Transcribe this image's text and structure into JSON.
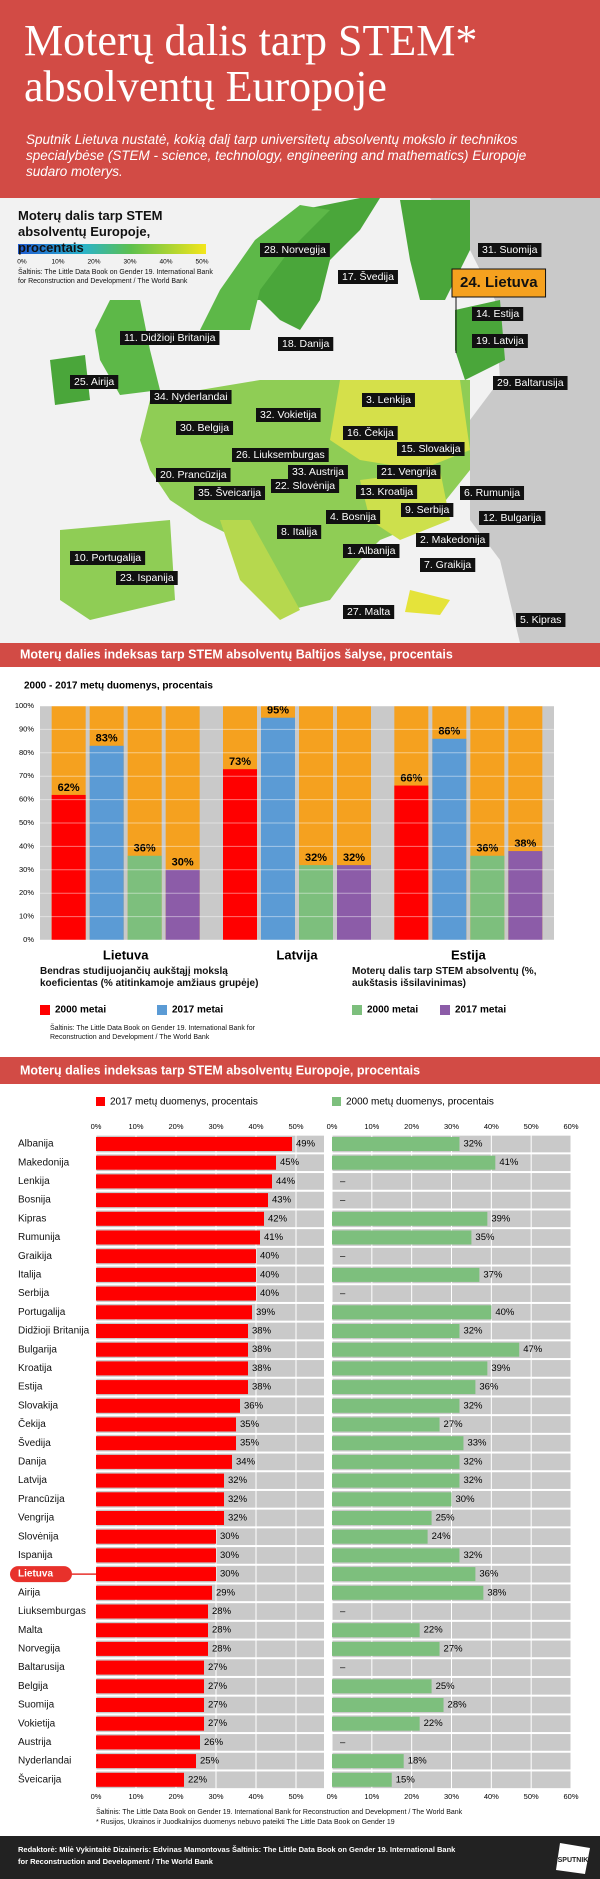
{
  "header": {
    "title": "Moterų dalis tarp STEM* absolventų Europoje",
    "subtitle": "Sputnik Lietuva nustatė, kokią dalį tarp universitetų absolventų mokslo ir technikos specialybėse (STEM - science, technology, engineering and mathematics) Europoje sudaro moterys."
  },
  "map": {
    "title": "Moterų dalis tarp STEM absolventų Europoje, procentais",
    "legend_ticks": [
      "0%",
      "10%",
      "20%",
      "30%",
      "40%",
      "50%"
    ],
    "source": "Šaltinis: The Little Data Book on Gender 19. International Bank for Reconstruction and Development / The World Bank",
    "highlight": "24. Lietuva",
    "labels": [
      "28. Norvegija",
      "17. Švedija",
      "31. Suomija",
      "24. Lietuva",
      "14. Estija",
      "19. Latvija",
      "11. Didžioji Britanija",
      "18. Danija",
      "25. Airija",
      "29. Baltarusija",
      "34. Nyderlandai",
      "3. Lenkija",
      "32. Vokietija",
      "30. Belgija",
      "16. Čekija",
      "15. Slovakija",
      "26. Liuksemburgas",
      "20. Prancūzija",
      "33. Austrija",
      "21. Vengrija",
      "22. Slovėnija",
      "35. Šveicarija",
      "13. Kroatija",
      "6. Rumunija",
      "9. Serbija",
      "4. Bosnija",
      "12. Bulgarija",
      "8. Italija",
      "2. Makedonija",
      "1. Albanija",
      "10. Portugalija",
      "7. Graikija",
      "23. Ispanija",
      "27. Malta",
      "5. Kipras"
    ]
  },
  "chart_data": [
    {
      "type": "grouped-bar",
      "title": "Moterų dalies indeksas tarp STEM absolventų Baltijos šalyse, procentais",
      "subtitle": "2000 - 2017 metų duomenys, procentais",
      "categories": [
        "Lietuva",
        "Latvija",
        "Estija"
      ],
      "legend_titles": [
        "Bendras studijuojančių aukštąjį mokslą koeficientas (% atitinkamoje amžiaus grupėje)",
        "Moterų dalis tarp STEM absolventų (%, aukštasis išsilavinimas)"
      ],
      "series": [
        {
          "name": "2000 metai",
          "color": "#ff0000",
          "values": [
            62,
            73,
            66
          ],
          "value_labels": [
            "62%",
            "73%",
            "66%"
          ]
        },
        {
          "name": "2017 metai",
          "color": "#5b9bd5",
          "values": [
            83,
            95,
            86
          ],
          "value_labels": [
            "83%",
            "95%",
            "86%"
          ]
        },
        {
          "name": "2000 metai",
          "color": "#7dbf7d",
          "values": [
            36,
            32,
            36
          ],
          "value_labels": [
            "36%",
            "32%",
            "36%"
          ]
        },
        {
          "name": "2017 metai",
          "color": "#8c5ca8",
          "values": [
            30,
            32,
            38
          ],
          "value_labels": [
            "30%",
            "32%",
            "38%"
          ]
        }
      ],
      "background_color": "#f5a11f",
      "ylim": [
        0,
        100
      ],
      "yticks": [
        {
          "value": 0,
          "label": "0%"
        },
        {
          "value": 10,
          "label": "10%"
        },
        {
          "value": 20,
          "label": "20%"
        },
        {
          "value": 30,
          "label": "30%"
        },
        {
          "value": 40,
          "label": "40%"
        },
        {
          "value": 50,
          "label": "50%"
        },
        {
          "value": 60,
          "label": "60%"
        },
        {
          "value": 70,
          "label": "70%"
        },
        {
          "value": 80,
          "label": "80%"
        },
        {
          "value": 90,
          "label": "90%"
        },
        {
          "value": 100,
          "label": "100%"
        }
      ],
      "grid": true,
      "source": "Šaltinis: The Little Data Book on Gender 19. International Bank for Reconstruction and Development / The World Bank"
    },
    {
      "type": "hbar-panels",
      "title": "Moterų dalies indeksas tarp STEM absolventų Europoje, procentais",
      "categories": [
        "Albanija",
        "Makedonija",
        "Lenkija",
        "Bosnija",
        "Kipras",
        "Rumunija",
        "Graikija",
        "Italija",
        "Serbija",
        "Portugalija",
        "Didžioji Britanija",
        "Bulgarija",
        "Kroatija",
        "Estija",
        "Slovakija",
        "Čekija",
        "Švedija",
        "Danija",
        "Latvija",
        "Prancūzija",
        "Vengrija",
        "Slovėnija",
        "Ispanija",
        "Lietuva",
        "Airija",
        "Liuksemburgas",
        "Malta",
        "Norvegija",
        "Baltarusija",
        "Belgija",
        "Suomija",
        "Vokietija",
        "Austrija",
        "Nyderlandai",
        "Šveicarija"
      ],
      "highlight": "Lietuva",
      "series": [
        {
          "name": "2017 metų duomenys, procentais",
          "color": "#ff0000",
          "values": [
            49,
            45,
            44,
            43,
            42,
            41,
            40,
            40,
            40,
            39,
            38,
            38,
            38,
            38,
            36,
            35,
            35,
            34,
            32,
            32,
            32,
            30,
            30,
            30,
            29,
            28,
            28,
            28,
            27,
            27,
            27,
            27,
            26,
            25,
            22
          ],
          "value_labels": [
            "49%",
            "45%",
            "44%",
            "43%",
            "42%",
            "41%",
            "40%",
            "40%",
            "40%",
            "39%",
            "38%",
            "38%",
            "38%",
            "38%",
            "36%",
            "35%",
            "35%",
            "34%",
            "32%",
            "32%",
            "32%",
            "30%",
            "30%",
            "30%",
            "29%",
            "28%",
            "28%",
            "28%",
            "27%",
            "27%",
            "27%",
            "27%",
            "26%",
            "25%",
            "22%"
          ],
          "xlim": [
            0,
            57
          ],
          "xticks": [
            {
              "value": 0,
              "label": "0%"
            },
            {
              "value": 10,
              "label": "10%"
            },
            {
              "value": 20,
              "label": "20%"
            },
            {
              "value": 30,
              "label": "30%"
            },
            {
              "value": 40,
              "label": "40%"
            },
            {
              "value": 50,
              "label": "50%"
            }
          ]
        },
        {
          "name": "2000 metų duomenys, procentais",
          "color": "#7dbf7d",
          "values": [
            32,
            41,
            null,
            null,
            39,
            35,
            null,
            37,
            null,
            40,
            32,
            47,
            39,
            36,
            32,
            27,
            33,
            32,
            32,
            30,
            25,
            24,
            32,
            36,
            38,
            null,
            22,
            27,
            null,
            25,
            28,
            22,
            null,
            18,
            15
          ],
          "value_labels": [
            "32%",
            "41%",
            "–",
            "–",
            "39%",
            "35%",
            "–",
            "37%",
            "–",
            "40%",
            "32%",
            "47%",
            "39%",
            "36%",
            "32%",
            "27%",
            "33%",
            "32%",
            "32%",
            "30%",
            "25%",
            "24%",
            "32%",
            "36%",
            "38%",
            "–",
            "22%",
            "27%",
            "–",
            "25%",
            "28%",
            "22%",
            "–",
            "18%",
            "15%"
          ],
          "xlim": [
            0,
            60
          ],
          "xticks": [
            {
              "value": 0,
              "label": "0%"
            },
            {
              "value": 10,
              "label": "10%"
            },
            {
              "value": 20,
              "label": "20%"
            },
            {
              "value": 30,
              "label": "30%"
            },
            {
              "value": 40,
              "label": "40%"
            },
            {
              "value": 50,
              "label": "50%"
            },
            {
              "value": 60,
              "label": "60%"
            }
          ]
        }
      ],
      "panel_color": "#c9c9c9",
      "grid": true,
      "notes": [
        "Šaltinis: The Little Data Book on Gender 19. International Bank for Reconstruction and Development / The World Bank",
        "* Rusijos, Ukrainos ir Juodkalnijos duomenys nebuvo pateikti The Little Data Book on Gender 19"
      ]
    }
  ],
  "footer": {
    "credits": "Redaktorė: Milė Vykintaitė Dizaineris: Edvinas Mamontovas Šaltinis: The Little Data Book on Gender 19. International Bank for Reconstruction and Development / The World Bank",
    "logo": "SPUTNIK"
  }
}
